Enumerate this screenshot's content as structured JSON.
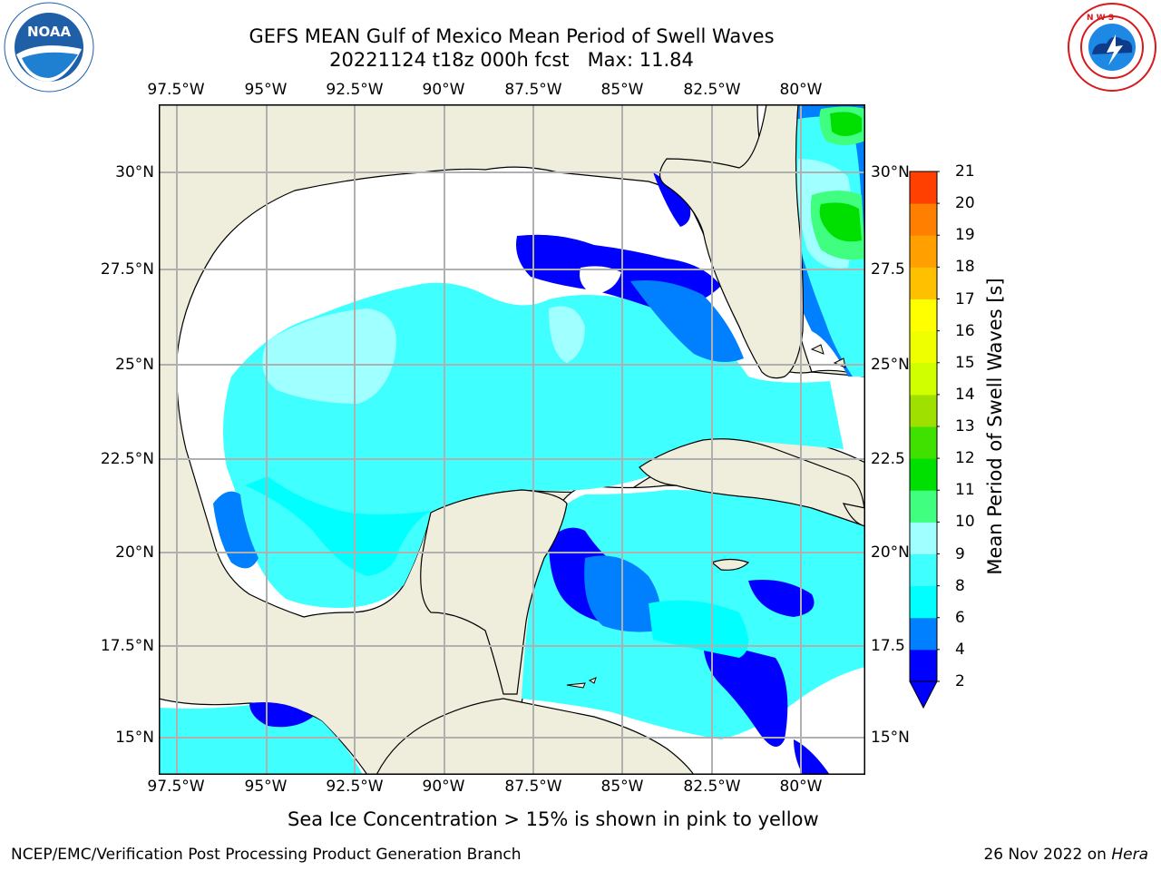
{
  "header": {
    "title_line1": "GEFS MEAN Gulf of Mexico Mean Period of Swell Waves",
    "title_line2": "20221124 t18z 000h fcst   Max: 11.84"
  },
  "logos": {
    "left": {
      "text": "NOAA",
      "ring_text": "NATIONAL OCEANIC AND ATMOSPHERIC ADMINISTRATION · U.S. DEPARTMENT OF COMMERCE",
      "color": "#1f5fa8"
    },
    "right": {
      "ring_text": "NATIONAL WEATHER SERVICE",
      "color": "#d7191c"
    }
  },
  "map": {
    "lon_labels": [
      "97.5°W",
      "95°W",
      "92.5°W",
      "90°W",
      "87.5°W",
      "85°W",
      "82.5°W",
      "80°W"
    ],
    "lat_labels_left": [
      "30°N",
      "27.5°N",
      "25°N",
      "22.5°N",
      "20°N",
      "17.5°N",
      "15°N"
    ],
    "lat_labels_right": [
      "30°N",
      "27.5",
      "25°N",
      "22.5",
      "20°N",
      "17.5",
      "15°N"
    ],
    "land_color": "#efeedc",
    "water_nodata_color": "#ffffff"
  },
  "colorbar": {
    "label": "Mean Period of Swell Waves [s]",
    "ticks": [
      "2",
      "4",
      "6",
      "8",
      "9",
      "10",
      "11",
      "12",
      "13",
      "14",
      "15",
      "16",
      "17",
      "18",
      "19",
      "20",
      "21"
    ],
    "colors": [
      "#0000ff",
      "#0080ff",
      "#00ffff",
      "#40ffff",
      "#a0ffff",
      "#40ff80",
      "#00e000",
      "#40e000",
      "#a0e000",
      "#d0ff00",
      "#f0ff00",
      "#ffff00",
      "#ffc000",
      "#ffa000",
      "#ff8000",
      "#ff4000",
      "#ff0000"
    ]
  },
  "caption": "Sea Ice Concentration > 15% is shown in pink to yellow",
  "footer": {
    "left": "NCEP/EMC/Verification Post Processing Product Generation Branch",
    "right_date": "26 Nov 2022 on ",
    "right_host": "Hera"
  }
}
